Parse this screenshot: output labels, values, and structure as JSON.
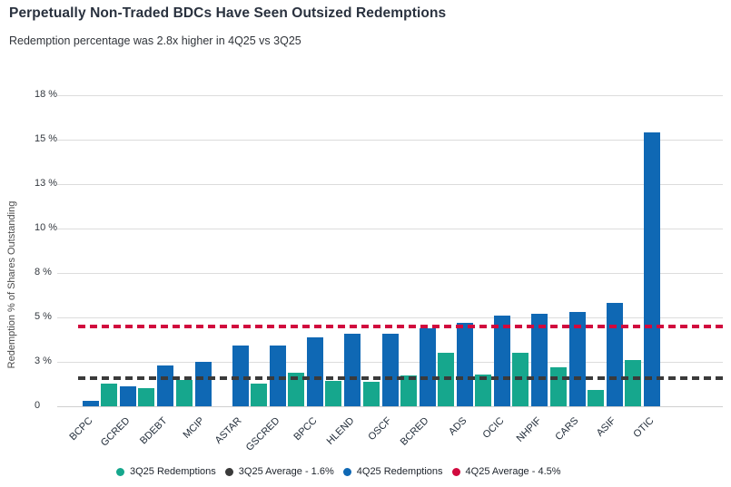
{
  "header": {
    "title": "Perpetually Non-Traded BDCs Have Seen Outsized Redemptions",
    "subtitle": "Redemption percentage was 2.8x higher in 4Q25 vs 3Q25"
  },
  "colors": {
    "teal": "#16a78d",
    "blue": "#0f68b4",
    "red": "#d10a3e",
    "dark": "#3a3a3a",
    "grid": "#dcdcdc"
  },
  "chart_data": {
    "type": "bar",
    "title": "Perpetually Non-Traded BDCs Have Seen Outsized Redemptions",
    "subtitle": "Redemption percentage was 2.8x higher in 4Q25 vs 3Q25",
    "ylabel": "Redemption % of Shares Outstanding",
    "xlabel": "",
    "ylim": [
      0,
      17.5
    ],
    "grid": true,
    "legend_position": "bottom",
    "categories": [
      "BCPC",
      "GCRED",
      "BDEBT",
      "MCIP",
      "ASTAR",
      "GSCRED",
      "BPCC",
      "HLEND",
      "OSCF",
      "BCRED",
      "ADS",
      "OCIC",
      "NHPIF",
      "CARS",
      "ASIF",
      "OTIC"
    ],
    "series": [
      {
        "name": "3Q25 Redemptions",
        "color_key": "teal",
        "values": [
          0,
          1.3,
          1.0,
          1.5,
          0,
          1.3,
          1.9,
          1.45,
          1.4,
          1.75,
          3.0,
          1.8,
          3.0,
          2.2,
          0.9,
          2.6
        ]
      },
      {
        "name": "4Q25 Redemptions",
        "color_key": "blue",
        "values": [
          0.3,
          1.1,
          2.3,
          2.5,
          3.4,
          3.4,
          3.9,
          4.1,
          4.1,
          4.4,
          4.7,
          5.1,
          5.2,
          5.3,
          5.8,
          15.4
        ]
      }
    ],
    "reference_lines": [
      {
        "name": "3Q25 Average - 1.6%",
        "value": 1.6,
        "color_key": "dark"
      },
      {
        "name": "4Q25 Average - 4.5%",
        "value": 4.5,
        "color_key": "red"
      }
    ],
    "y_ticks": [
      {
        "label": "18 %",
        "value": 17.5
      },
      {
        "label": "15 %",
        "value": 15
      },
      {
        "label": "13 %",
        "value": 12.5
      },
      {
        "label": "10 %",
        "value": 10
      },
      {
        "label": "8 %",
        "value": 7.5
      },
      {
        "label": "5 %",
        "value": 5
      },
      {
        "label": "3 %",
        "value": 2.5
      },
      {
        "label": "0",
        "value": 0
      }
    ]
  },
  "legend": {
    "items": [
      {
        "label": "3Q25 Redemptions",
        "color_key": "teal"
      },
      {
        "label": "3Q25 Average - 1.6%",
        "color_key": "dark"
      },
      {
        "label": "4Q25 Redemptions",
        "color_key": "blue"
      },
      {
        "label": "4Q25 Average - 4.5%",
        "color_key": "red"
      }
    ]
  }
}
